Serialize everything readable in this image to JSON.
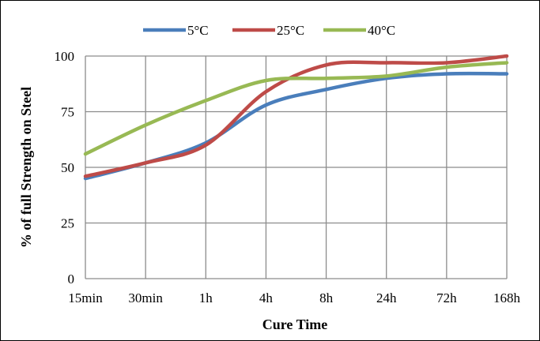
{
  "chart_data": {
    "type": "line",
    "categories": [
      "15min",
      "30min",
      "1h",
      "4h",
      "8h",
      "24h",
      "72h",
      "168h"
    ],
    "xlabel": "Cure Time",
    "ylabel": "% of full  Strength on Steel",
    "ylim": [
      0,
      100
    ],
    "yticks": [
      0,
      25,
      50,
      75,
      100
    ],
    "grid": true,
    "legend_position": "top",
    "series": [
      {
        "name": "5°C",
        "color": "#4a7ebb",
        "values": [
          45,
          52,
          61,
          78,
          85,
          90,
          92,
          92
        ]
      },
      {
        "name": "25°C",
        "color": "#be4b48",
        "values": [
          46,
          52,
          60,
          84,
          96,
          97,
          97,
          100
        ]
      },
      {
        "name": "40°C",
        "color": "#98b954",
        "values": [
          56,
          69,
          80,
          89,
          90,
          91,
          95,
          97
        ]
      }
    ]
  }
}
